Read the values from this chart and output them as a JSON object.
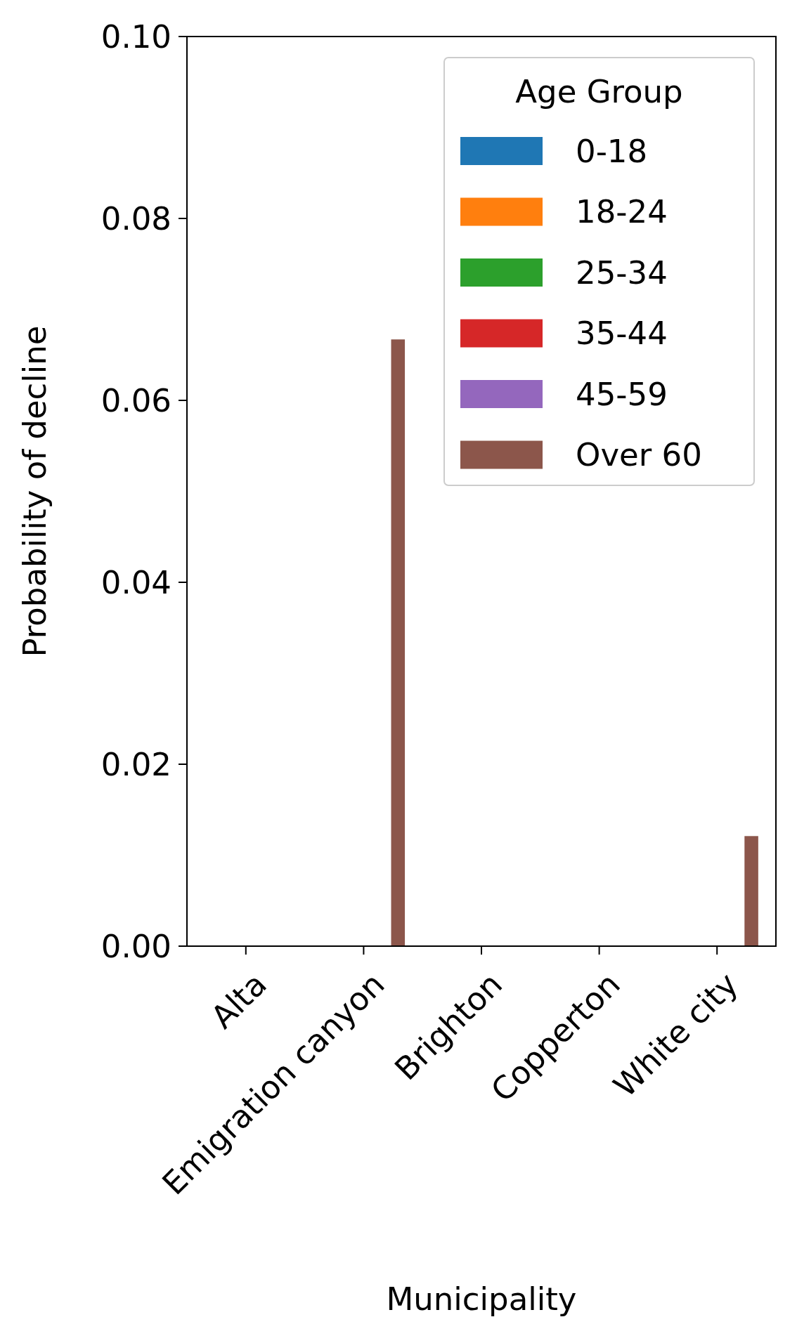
{
  "chart_data": {
    "type": "bar",
    "xlabel": "Municipality",
    "ylabel": "Probability of decline",
    "legend_title": "Age Group",
    "categories": [
      "Alta",
      "Emigration canyon",
      "Brighton",
      "Copperton",
      "White city"
    ],
    "series": [
      {
        "name": "0-18",
        "color": "#1f77b4",
        "values": [
          0,
          0,
          0,
          0,
          0
        ]
      },
      {
        "name": "18-24",
        "color": "#ff7f0e",
        "values": [
          0,
          0,
          0,
          0,
          0
        ]
      },
      {
        "name": "25-34",
        "color": "#2ca02c",
        "values": [
          0,
          0,
          0,
          0,
          0
        ]
      },
      {
        "name": "35-44",
        "color": "#d62728",
        "values": [
          0,
          0,
          0,
          0,
          0
        ]
      },
      {
        "name": "45-59",
        "color": "#9467bd",
        "values": [
          0,
          0,
          0,
          0,
          0
        ]
      },
      {
        "name": "Over 60",
        "color": "#8c564b",
        "values": [
          0,
          0.0667,
          0,
          0,
          0.0121
        ]
      }
    ],
    "ylim": [
      0,
      0.1
    ],
    "yticks": [
      {
        "value": 0,
        "label": "0.00"
      },
      {
        "value": 0.02,
        "label": "0.02"
      },
      {
        "value": 0.04,
        "label": "0.04"
      },
      {
        "value": 0.06,
        "label": "0.06"
      },
      {
        "value": 0.08,
        "label": "0.08"
      },
      {
        "value": 0.1,
        "label": "0.10"
      }
    ],
    "legend": "top right",
    "grid": false
  }
}
